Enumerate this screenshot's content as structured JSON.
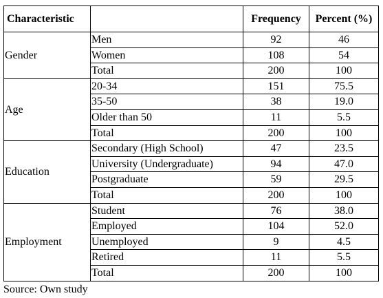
{
  "header": {
    "characteristic": "Characteristic",
    "subcategory": "",
    "frequency": "Frequency",
    "percent": "Percent (%)"
  },
  "groups": [
    {
      "name": "Gender",
      "rows": [
        {
          "label": "Men",
          "frequency": "92",
          "percent": "46"
        },
        {
          "label": "Women",
          "frequency": "108",
          "percent": "54"
        },
        {
          "label": "Total",
          "frequency": "200",
          "percent": "100"
        }
      ]
    },
    {
      "name": "Age",
      "rows": [
        {
          "label": "20-34",
          "frequency": "151",
          "percent": "75.5"
        },
        {
          "label": "35-50",
          "frequency": "38",
          "percent": "19.0"
        },
        {
          "label": "Older than 50",
          "frequency": "11",
          "percent": "5.5"
        },
        {
          "label": "Total",
          "frequency": "200",
          "percent": "100"
        }
      ]
    },
    {
      "name": "Education",
      "rows": [
        {
          "label": "Secondary (High School)",
          "frequency": "47",
          "percent": "23.5"
        },
        {
          "label": "University (Undergraduate)",
          "frequency": "94",
          "percent": "47.0"
        },
        {
          "label": "Postgraduate",
          "frequency": "59",
          "percent": "29.5"
        },
        {
          "label": "Total",
          "frequency": "200",
          "percent": "100"
        }
      ]
    },
    {
      "name": "Employment",
      "rows": [
        {
          "label": "Student",
          "frequency": "76",
          "percent": "38.0"
        },
        {
          "label": "Employed",
          "frequency": "104",
          "percent": "52.0"
        },
        {
          "label": "Unemployed",
          "frequency": "9",
          "percent": "4.5"
        },
        {
          "label": "Retired",
          "frequency": "11",
          "percent": "5.5"
        },
        {
          "label": "Total",
          "frequency": "200",
          "percent": "100"
        }
      ]
    }
  ],
  "source": "Source: Own study"
}
